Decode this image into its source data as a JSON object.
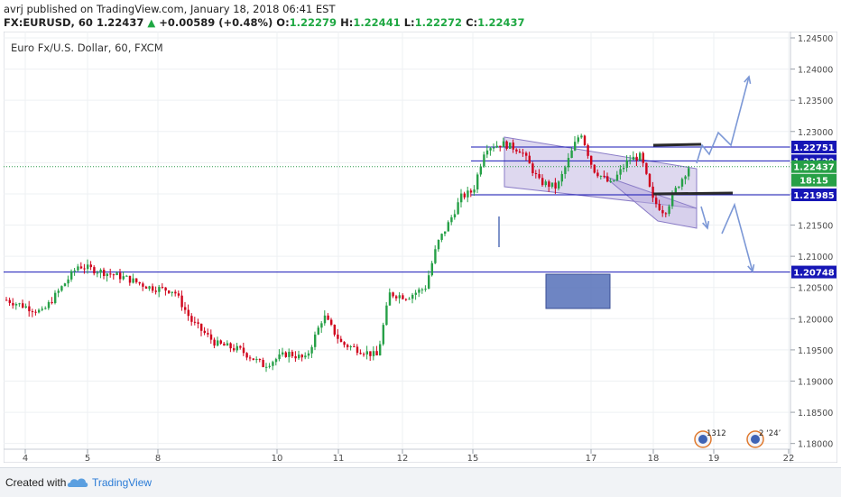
{
  "header": {
    "user": "avrj",
    "published_text": "published on TradingView.com, January 18, 2018 06:41 EST",
    "symbol": "FX:EURUSD, 60",
    "last": "1.22437",
    "change": "+0.00589 (+0.48%)",
    "o_label": "O:",
    "o": "1.22279",
    "h_label": "H:",
    "h": "1.22441",
    "l_label": "L:",
    "l": "1.22272",
    "c_label": "C:",
    "c": "1.22437"
  },
  "footer": {
    "created_with": "Created with",
    "brand": "TradingView"
  },
  "colors": {
    "up": "#26a047",
    "down": "#d0021b",
    "level": "#1616b6",
    "channel_fill": "#b6a9dc",
    "box_fill": "#5570b8",
    "arrow": "#7c98d6",
    "marker": "#2a2a2a"
  },
  "chart_data": {
    "type": "candlestick",
    "title": "Euro Fx/U.S. Dollar, 60, FXCM",
    "y_ticks": [
      "1.24500",
      "1.24000",
      "1.23500",
      "1.23000",
      "1.22500",
      "1.22000",
      "1.21500",
      "1.21000",
      "1.20500",
      "1.20000",
      "1.19500",
      "1.19000",
      "1.18500",
      "1.18000"
    ],
    "x_ticks": [
      "4",
      "5",
      "8",
      "10",
      "11",
      "12",
      "15",
      "17",
      "18",
      "19",
      "22"
    ],
    "ylim": [
      1.178,
      1.246
    ],
    "price_labels": [
      {
        "text": "1.22751",
        "value": 1.22751,
        "style": "level"
      },
      {
        "text": "1.22529",
        "value": 1.22529,
        "style": "level"
      },
      {
        "text": "1.22437",
        "value": 1.22437,
        "style": "last"
      },
      {
        "text": "18:15",
        "value": 1.2222,
        "style": "last"
      },
      {
        "text": "1.21985",
        "value": 1.21985,
        "style": "level"
      },
      {
        "text": "1.20748",
        "value": 1.20748,
        "style": "level"
      }
    ],
    "horizontal_levels": [
      1.22751,
      1.22529,
      1.21985,
      1.20748
    ],
    "path_points": [
      [
        0,
        1.203
      ],
      [
        6,
        1.201
      ],
      [
        12,
        1.2085
      ],
      [
        16,
        1.2075
      ],
      [
        20,
        1.2065
      ],
      [
        24,
        1.205
      ],
      [
        28,
        1.2045
      ],
      [
        31,
        1.1995
      ],
      [
        35,
        1.196
      ],
      [
        39,
        1.195
      ],
      [
        43,
        1.1925
      ],
      [
        47,
        1.1945
      ],
      [
        50,
        1.1935
      ],
      [
        53,
        1.2005
      ],
      [
        56,
        1.196
      ],
      [
        59,
        1.195
      ],
      [
        62,
        1.194
      ],
      [
        64,
        1.204
      ],
      [
        67,
        1.2035
      ],
      [
        70,
        1.205
      ],
      [
        72,
        1.212
      ],
      [
        74,
        1.2155
      ],
      [
        76,
        1.2195
      ],
      [
        78,
        1.2205
      ],
      [
        80,
        1.2275
      ],
      [
        83,
        1.228
      ],
      [
        86,
        1.227
      ],
      [
        89,
        1.222
      ],
      [
        92,
        1.221
      ],
      [
        95,
        1.228
      ],
      [
        96,
        1.23
      ],
      [
        98,
        1.224
      ],
      [
        101,
        1.2215
      ],
      [
        104,
        1.2255
      ],
      [
        106,
        1.226
      ],
      [
        108,
        1.219
      ],
      [
        110,
        1.217
      ],
      [
        112,
        1.221
      ],
      [
        114,
        1.2243
      ]
    ],
    "events": [
      "1312",
      "2 ‘24’"
    ]
  }
}
